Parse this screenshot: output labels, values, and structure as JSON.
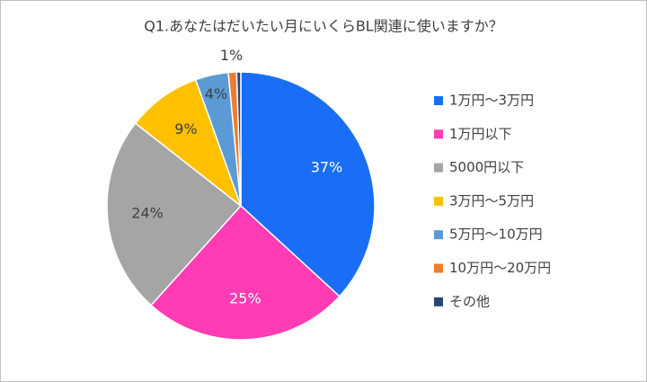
{
  "chart_data": {
    "type": "pie",
    "title": "Q1.あなたはだいたい月にいくらBL関連に使いますか？",
    "categories": [
      "1万円～3万円",
      "1万円以下",
      "5000円以下",
      "3万円～5万円",
      "5万円～10万円",
      "10万円～20万円",
      "その他"
    ],
    "values": [
      37,
      25,
      24,
      9,
      4,
      1,
      0.5
    ],
    "value_labels": [
      "37%",
      "25%",
      "24%",
      "9%",
      "4%",
      "1%",
      null
    ],
    "colors": [
      "#1a6ef5",
      "#ff3cb4",
      "#a5a5a5",
      "#ffc000",
      "#5b9bd5",
      "#ed7d31",
      "#264478"
    ],
    "legend": "right"
  }
}
